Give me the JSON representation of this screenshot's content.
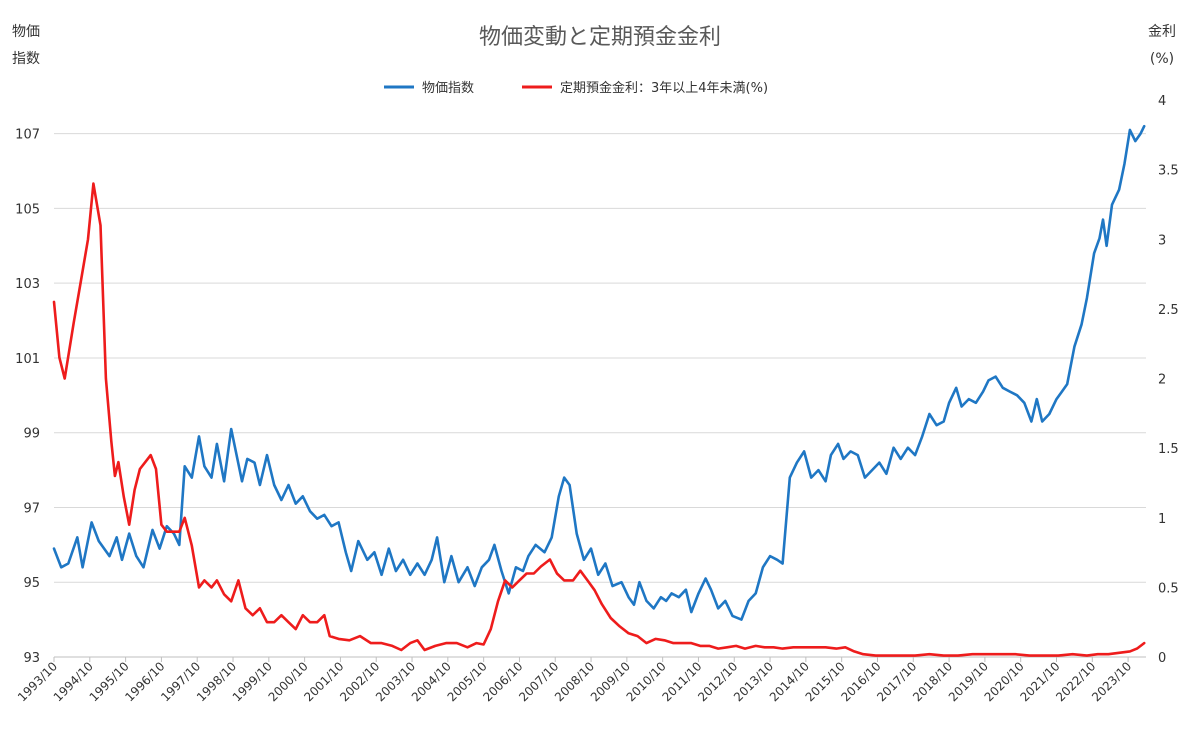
{
  "chart_data": {
    "type": "line",
    "title": "物価変動と定期預金金利",
    "y_left_label": [
      "物価",
      "指数"
    ],
    "y_right_label": [
      "金利",
      "(%)"
    ],
    "y_left_ticks": [
      "93",
      "95",
      "97",
      "99",
      "101",
      "103",
      "105",
      "107"
    ],
    "y_right_ticks": [
      "0",
      "0.5",
      "1",
      "1.5",
      "2",
      "2.5",
      "3",
      "3.5",
      "4"
    ],
    "ylim_left": [
      93,
      107.9
    ],
    "ylim_right": [
      0,
      4
    ],
    "x_ticks": [
      "1993/10",
      "1994/10",
      "1995/10",
      "1996/10",
      "1997/10",
      "1998/10",
      "1999/10",
      "2000/10",
      "2001/10",
      "2002/10",
      "2003/10",
      "2004/10",
      "2005/10",
      "2006/10",
      "2007/10",
      "2008/10",
      "2009/10",
      "2010/10",
      "2011/10",
      "2012/10",
      "2013/10",
      "2014/10",
      "2015/10",
      "2016/10",
      "2017/10",
      "2018/10",
      "2019/10",
      "2020/10",
      "2021/10",
      "2022/10",
      "2023/10"
    ],
    "x_range": [
      1993.75,
      2024.25
    ],
    "legend_position": "top-center",
    "grid": true,
    "series": [
      {
        "name": "物価指数",
        "axis": "left",
        "color": "#1f77c4",
        "points": [
          [
            1993.75,
            95.9
          ],
          [
            1993.95,
            95.4
          ],
          [
            1994.15,
            95.5
          ],
          [
            1994.4,
            96.2
          ],
          [
            1994.55,
            95.4
          ],
          [
            1994.8,
            96.6
          ],
          [
            1995.0,
            96.1
          ],
          [
            1995.3,
            95.7
          ],
          [
            1995.5,
            96.2
          ],
          [
            1995.65,
            95.6
          ],
          [
            1995.85,
            96.3
          ],
          [
            1996.05,
            95.7
          ],
          [
            1996.25,
            95.4
          ],
          [
            1996.5,
            96.4
          ],
          [
            1996.7,
            95.9
          ],
          [
            1996.9,
            96.5
          ],
          [
            1997.1,
            96.3
          ],
          [
            1997.25,
            96.0
          ],
          [
            1997.4,
            98.1
          ],
          [
            1997.6,
            97.8
          ],
          [
            1997.8,
            98.9
          ],
          [
            1997.95,
            98.1
          ],
          [
            1998.15,
            97.8
          ],
          [
            1998.3,
            98.7
          ],
          [
            1998.5,
            97.7
          ],
          [
            1998.7,
            99.1
          ],
          [
            1998.85,
            98.4
          ],
          [
            1999.0,
            97.7
          ],
          [
            1999.15,
            98.3
          ],
          [
            1999.35,
            98.2
          ],
          [
            1999.5,
            97.6
          ],
          [
            1999.7,
            98.4
          ],
          [
            1999.9,
            97.6
          ],
          [
            2000.1,
            97.2
          ],
          [
            2000.3,
            97.6
          ],
          [
            2000.5,
            97.1
          ],
          [
            2000.7,
            97.3
          ],
          [
            2000.9,
            96.9
          ],
          [
            2001.1,
            96.7
          ],
          [
            2001.3,
            96.8
          ],
          [
            2001.5,
            96.5
          ],
          [
            2001.7,
            96.6
          ],
          [
            2001.9,
            95.8
          ],
          [
            2002.05,
            95.3
          ],
          [
            2002.25,
            96.1
          ],
          [
            2002.5,
            95.6
          ],
          [
            2002.7,
            95.8
          ],
          [
            2002.9,
            95.2
          ],
          [
            2003.1,
            95.9
          ],
          [
            2003.3,
            95.3
          ],
          [
            2003.5,
            95.6
          ],
          [
            2003.7,
            95.2
          ],
          [
            2003.9,
            95.5
          ],
          [
            2004.1,
            95.2
          ],
          [
            2004.3,
            95.6
          ],
          [
            2004.45,
            96.2
          ],
          [
            2004.65,
            95.0
          ],
          [
            2004.85,
            95.7
          ],
          [
            2005.05,
            95.0
          ],
          [
            2005.3,
            95.4
          ],
          [
            2005.5,
            94.9
          ],
          [
            2005.7,
            95.4
          ],
          [
            2005.9,
            95.6
          ],
          [
            2006.05,
            96.0
          ],
          [
            2006.25,
            95.3
          ],
          [
            2006.45,
            94.7
          ],
          [
            2006.65,
            95.4
          ],
          [
            2006.85,
            95.3
          ],
          [
            2007.0,
            95.7
          ],
          [
            2007.2,
            96.0
          ],
          [
            2007.45,
            95.8
          ],
          [
            2007.65,
            96.2
          ],
          [
            2007.85,
            97.3
          ],
          [
            2008.0,
            97.8
          ],
          [
            2008.15,
            97.6
          ],
          [
            2008.35,
            96.3
          ],
          [
            2008.55,
            95.6
          ],
          [
            2008.75,
            95.9
          ],
          [
            2008.95,
            95.2
          ],
          [
            2009.15,
            95.5
          ],
          [
            2009.35,
            94.9
          ],
          [
            2009.6,
            95.0
          ],
          [
            2009.8,
            94.6
          ],
          [
            2009.95,
            94.4
          ],
          [
            2010.1,
            95.0
          ],
          [
            2010.3,
            94.5
          ],
          [
            2010.5,
            94.3
          ],
          [
            2010.7,
            94.6
          ],
          [
            2010.85,
            94.5
          ],
          [
            2011.0,
            94.7
          ],
          [
            2011.2,
            94.6
          ],
          [
            2011.4,
            94.8
          ],
          [
            2011.55,
            94.2
          ],
          [
            2011.75,
            94.7
          ],
          [
            2011.95,
            95.1
          ],
          [
            2012.1,
            94.8
          ],
          [
            2012.3,
            94.3
          ],
          [
            2012.5,
            94.5
          ],
          [
            2012.7,
            94.1
          ],
          [
            2012.95,
            94.0
          ],
          [
            2013.15,
            94.5
          ],
          [
            2013.35,
            94.7
          ],
          [
            2013.55,
            95.4
          ],
          [
            2013.75,
            95.7
          ],
          [
            2013.95,
            95.6
          ],
          [
            2014.1,
            95.5
          ],
          [
            2014.3,
            97.8
          ],
          [
            2014.5,
            98.2
          ],
          [
            2014.7,
            98.5
          ],
          [
            2014.9,
            97.8
          ],
          [
            2015.1,
            98.0
          ],
          [
            2015.3,
            97.7
          ],
          [
            2015.45,
            98.4
          ],
          [
            2015.65,
            98.7
          ],
          [
            2015.8,
            98.3
          ],
          [
            2016.0,
            98.5
          ],
          [
            2016.2,
            98.4
          ],
          [
            2016.4,
            97.8
          ],
          [
            2016.6,
            98.0
          ],
          [
            2016.8,
            98.2
          ],
          [
            2017.0,
            97.9
          ],
          [
            2017.2,
            98.6
          ],
          [
            2017.4,
            98.3
          ],
          [
            2017.6,
            98.6
          ],
          [
            2017.8,
            98.4
          ],
          [
            2018.0,
            98.9
          ],
          [
            2018.2,
            99.5
          ],
          [
            2018.4,
            99.2
          ],
          [
            2018.6,
            99.3
          ],
          [
            2018.75,
            99.8
          ],
          [
            2018.95,
            100.2
          ],
          [
            2019.1,
            99.7
          ],
          [
            2019.3,
            99.9
          ],
          [
            2019.5,
            99.8
          ],
          [
            2019.7,
            100.1
          ],
          [
            2019.85,
            100.4
          ],
          [
            2020.05,
            100.5
          ],
          [
            2020.25,
            100.2
          ],
          [
            2020.45,
            100.1
          ],
          [
            2020.65,
            100.0
          ],
          [
            2020.85,
            99.8
          ],
          [
            2021.05,
            99.3
          ],
          [
            2021.2,
            99.9
          ],
          [
            2021.35,
            99.3
          ],
          [
            2021.55,
            99.5
          ],
          [
            2021.75,
            99.9
          ],
          [
            2021.9,
            100.1
          ],
          [
            2022.05,
            100.3
          ],
          [
            2022.25,
            101.3
          ],
          [
            2022.45,
            101.9
          ],
          [
            2022.6,
            102.6
          ],
          [
            2022.8,
            103.8
          ],
          [
            2022.95,
            104.2
          ],
          [
            2023.05,
            104.7
          ],
          [
            2023.15,
            104.0
          ],
          [
            2023.3,
            105.1
          ],
          [
            2023.5,
            105.5
          ],
          [
            2023.65,
            106.2
          ],
          [
            2023.8,
            107.1
          ],
          [
            2023.95,
            106.8
          ],
          [
            2024.1,
            107.0
          ],
          [
            2024.2,
            107.2
          ]
        ]
      },
      {
        "name": "定期預金金利：3年以上4年未満(%)",
        "axis": "right",
        "color": "#ee1c1c",
        "points": [
          [
            1993.75,
            2.55
          ],
          [
            1993.9,
            2.15
          ],
          [
            1994.05,
            2.0
          ],
          [
            1994.3,
            2.4
          ],
          [
            1994.5,
            2.7
          ],
          [
            1994.7,
            3.0
          ],
          [
            1994.85,
            3.4
          ],
          [
            1995.05,
            3.1
          ],
          [
            1995.2,
            2.0
          ],
          [
            1995.35,
            1.55
          ],
          [
            1995.45,
            1.3
          ],
          [
            1995.55,
            1.4
          ],
          [
            1995.7,
            1.15
          ],
          [
            1995.85,
            0.95
          ],
          [
            1996.0,
            1.2
          ],
          [
            1996.15,
            1.35
          ],
          [
            1996.3,
            1.4
          ],
          [
            1996.45,
            1.45
          ],
          [
            1996.6,
            1.35
          ],
          [
            1996.75,
            0.95
          ],
          [
            1996.9,
            0.9
          ],
          [
            1997.05,
            0.9
          ],
          [
            1997.25,
            0.9
          ],
          [
            1997.4,
            1.0
          ],
          [
            1997.6,
            0.8
          ],
          [
            1997.8,
            0.5
          ],
          [
            1997.95,
            0.55
          ],
          [
            1998.15,
            0.5
          ],
          [
            1998.3,
            0.55
          ],
          [
            1998.5,
            0.45
          ],
          [
            1998.7,
            0.4
          ],
          [
            1998.9,
            0.55
          ],
          [
            1999.1,
            0.35
          ],
          [
            1999.3,
            0.3
          ],
          [
            1999.5,
            0.35
          ],
          [
            1999.7,
            0.25
          ],
          [
            1999.9,
            0.25
          ],
          [
            2000.1,
            0.3
          ],
          [
            2000.3,
            0.25
          ],
          [
            2000.5,
            0.2
          ],
          [
            2000.7,
            0.3
          ],
          [
            2000.9,
            0.25
          ],
          [
            2001.1,
            0.25
          ],
          [
            2001.3,
            0.3
          ],
          [
            2001.45,
            0.15
          ],
          [
            2001.7,
            0.13
          ],
          [
            2002.0,
            0.12
          ],
          [
            2002.3,
            0.15
          ],
          [
            2002.6,
            0.1
          ],
          [
            2002.9,
            0.1
          ],
          [
            2003.2,
            0.08
          ],
          [
            2003.45,
            0.05
          ],
          [
            2003.7,
            0.1
          ],
          [
            2003.9,
            0.12
          ],
          [
            2004.1,
            0.05
          ],
          [
            2004.4,
            0.08
          ],
          [
            2004.7,
            0.1
          ],
          [
            2005.0,
            0.1
          ],
          [
            2005.3,
            0.07
          ],
          [
            2005.55,
            0.1
          ],
          [
            2005.75,
            0.09
          ],
          [
            2005.95,
            0.2
          ],
          [
            2006.15,
            0.4
          ],
          [
            2006.35,
            0.55
          ],
          [
            2006.55,
            0.5
          ],
          [
            2006.75,
            0.55
          ],
          [
            2006.95,
            0.6
          ],
          [
            2007.15,
            0.6
          ],
          [
            2007.35,
            0.65
          ],
          [
            2007.6,
            0.7
          ],
          [
            2007.8,
            0.6
          ],
          [
            2008.0,
            0.55
          ],
          [
            2008.25,
            0.55
          ],
          [
            2008.45,
            0.62
          ],
          [
            2008.65,
            0.55
          ],
          [
            2008.85,
            0.48
          ],
          [
            2009.05,
            0.38
          ],
          [
            2009.3,
            0.28
          ],
          [
            2009.55,
            0.22
          ],
          [
            2009.8,
            0.17
          ],
          [
            2010.05,
            0.15
          ],
          [
            2010.3,
            0.1
          ],
          [
            2010.55,
            0.13
          ],
          [
            2010.8,
            0.12
          ],
          [
            2011.05,
            0.1
          ],
          [
            2011.3,
            0.1
          ],
          [
            2011.55,
            0.1
          ],
          [
            2011.8,
            0.08
          ],
          [
            2012.05,
            0.08
          ],
          [
            2012.3,
            0.06
          ],
          [
            2012.55,
            0.07
          ],
          [
            2012.8,
            0.08
          ],
          [
            2013.05,
            0.06
          ],
          [
            2013.35,
            0.08
          ],
          [
            2013.6,
            0.07
          ],
          [
            2013.85,
            0.07
          ],
          [
            2014.1,
            0.06
          ],
          [
            2014.4,
            0.07
          ],
          [
            2014.7,
            0.07
          ],
          [
            2015.0,
            0.07
          ],
          [
            2015.3,
            0.07
          ],
          [
            2015.6,
            0.06
          ],
          [
            2015.85,
            0.07
          ],
          [
            2016.1,
            0.04
          ],
          [
            2016.35,
            0.02
          ],
          [
            2016.7,
            0.01
          ],
          [
            2017.0,
            0.01
          ],
          [
            2017.4,
            0.01
          ],
          [
            2017.8,
            0.01
          ],
          [
            2018.2,
            0.02
          ],
          [
            2018.6,
            0.01
          ],
          [
            2019.0,
            0.01
          ],
          [
            2019.4,
            0.02
          ],
          [
            2019.8,
            0.02
          ],
          [
            2020.2,
            0.02
          ],
          [
            2020.6,
            0.02
          ],
          [
            2021.0,
            0.01
          ],
          [
            2021.4,
            0.01
          ],
          [
            2021.8,
            0.01
          ],
          [
            2022.2,
            0.02
          ],
          [
            2022.6,
            0.01
          ],
          [
            2022.9,
            0.02
          ],
          [
            2023.2,
            0.02
          ],
          [
            2023.5,
            0.03
          ],
          [
            2023.8,
            0.04
          ],
          [
            2024.0,
            0.06
          ],
          [
            2024.2,
            0.1
          ]
        ]
      }
    ]
  }
}
